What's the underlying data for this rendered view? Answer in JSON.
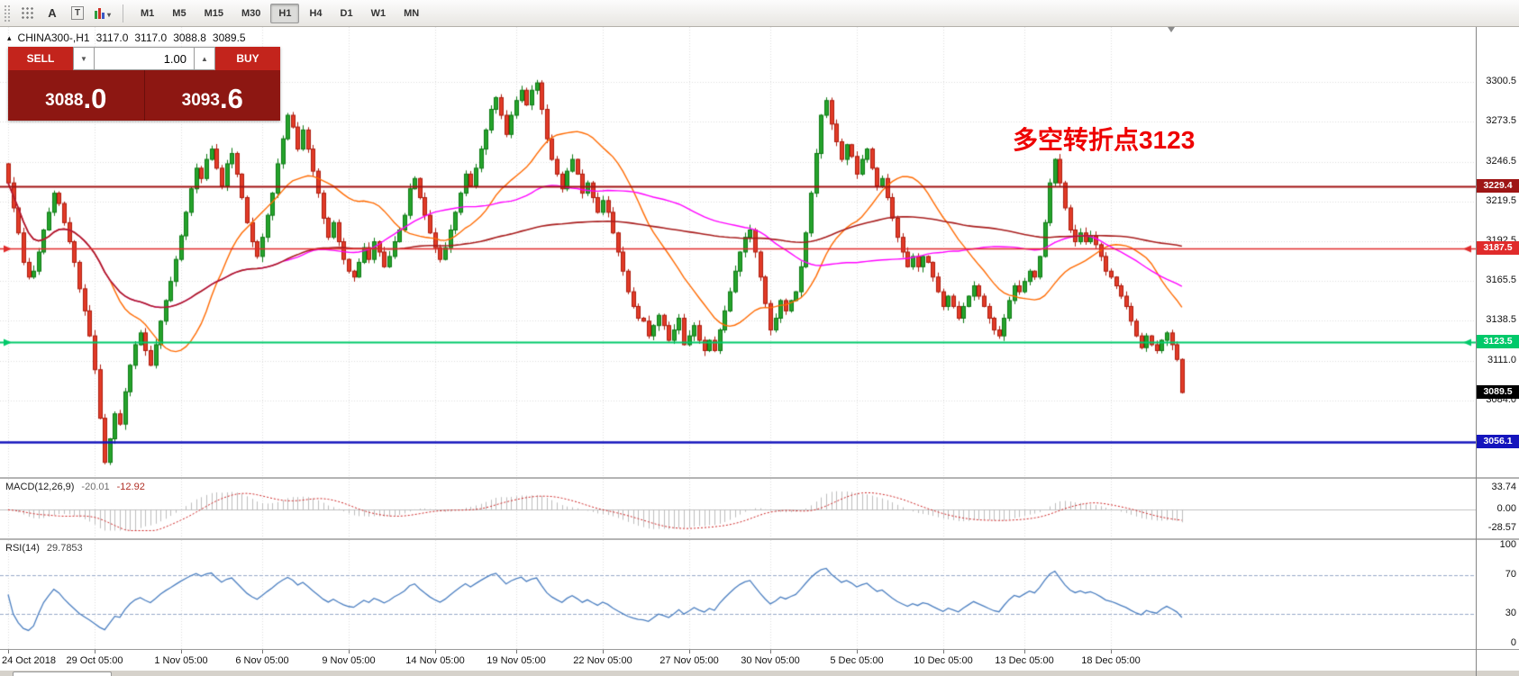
{
  "toolbar": {
    "tool_a": "A",
    "tool_t": "T",
    "timeframes": [
      "M1",
      "M5",
      "M15",
      "M30",
      "H1",
      "H4",
      "D1",
      "W1",
      "MN"
    ],
    "active_timeframe": "H1"
  },
  "icons": {
    "symbol_marker": "▴",
    "volume_down": "▼",
    "volume_up": "▲"
  },
  "header": {
    "symbol_period": "CHINA300-,H1",
    "open": "3117.0",
    "high": "3117.0",
    "low": "3088.8",
    "close": "3089.5"
  },
  "trade_panel": {
    "sell_label": "SELL",
    "buy_label": "BUY",
    "volume": "1.00",
    "sell_price_main": "3088",
    "sell_price_pips": ".0",
    "buy_price_main": "3093",
    "buy_price_pips": ".6"
  },
  "annotation": {
    "text": "多空转折点3123",
    "color": "#ee0000"
  },
  "price_axis": {
    "labels": [
      3300.5,
      3273.5,
      3246.5,
      3219.5,
      3192.5,
      3165.5,
      3138.5,
      3111.0,
      3084.0
    ],
    "tags": [
      {
        "text": "3229.4",
        "price": 3229.4,
        "bg": "#9e1616"
      },
      {
        "text": "3187.5",
        "price": 3187.5,
        "bg": "#e02b2b"
      },
      {
        "text": "3123.5",
        "price": 3123.5,
        "bg": "#00c96a"
      },
      {
        "text": "3089.5",
        "price": 3089.5,
        "bg": "#000000"
      },
      {
        "text": "3056.1",
        "price": 3056.1,
        "bg": "#1414bd"
      }
    ]
  },
  "macd_panel": {
    "label": "MACD(12,26,9)",
    "value_main": "-20.01",
    "value_signal": "-12.92",
    "axis": [
      {
        "text": "33.74",
        "value": 33.74
      },
      {
        "text": "0.00",
        "value": 0
      },
      {
        "text": "-28.57",
        "value": -28.57
      }
    ]
  },
  "rsi_panel": {
    "label": "RSI(14)",
    "value": "29.7853",
    "axis": [
      {
        "text": "100",
        "value": 100
      },
      {
        "text": "70",
        "value": 70
      },
      {
        "text": "30",
        "value": 30
      },
      {
        "text": "0",
        "value": 0
      }
    ],
    "levels": [
      70,
      30
    ]
  },
  "time_axis": [
    {
      "text": "24 Oct 2018",
      "index": 0
    },
    {
      "text": "29 Oct 05:00",
      "index": 17
    },
    {
      "text": "1 Nov 05:00",
      "index": 34
    },
    {
      "text": "6 Nov 05:00",
      "index": 50
    },
    {
      "text": "9 Nov 05:00",
      "index": 67
    },
    {
      "text": "14 Nov 05:00",
      "index": 84
    },
    {
      "text": "19 Nov 05:00",
      "index": 100
    },
    {
      "text": "22 Nov 05:00",
      "index": 117
    },
    {
      "text": "27 Nov 05:00",
      "index": 134
    },
    {
      "text": "30 Nov 05:00",
      "index": 150
    },
    {
      "text": "5 Dec 05:00",
      "index": 167
    },
    {
      "text": "10 Dec 05:00",
      "index": 184
    },
    {
      "text": "13 Dec 05:00",
      "index": 200
    },
    {
      "text": "18 Dec 05:00",
      "index": 217
    }
  ],
  "chart_data": {
    "type": "candlestick",
    "symbol": "CHINA300-",
    "timeframe": "H1",
    "ylim": [
      3032,
      3338
    ],
    "first_open": 3245,
    "closes": [
      3232,
      3215,
      3198,
      3178,
      3168,
      3172,
      3185,
      3200,
      3212,
      3225,
      3218,
      3205,
      3192,
      3178,
      3160,
      3145,
      3128,
      3105,
      3072,
      3042,
      3058,
      3075,
      3068,
      3090,
      3108,
      3122,
      3130,
      3118,
      3108,
      3122,
      3138,
      3152,
      3165,
      3180,
      3196,
      3212,
      3228,
      3242,
      3235,
      3248,
      3255,
      3242,
      3230,
      3245,
      3252,
      3238,
      3222,
      3205,
      3192,
      3182,
      3195,
      3210,
      3225,
      3245,
      3262,
      3278,
      3270,
      3255,
      3268,
      3255,
      3240,
      3225,
      3208,
      3195,
      3205,
      3192,
      3180,
      3172,
      3168,
      3178,
      3188,
      3180,
      3192,
      3185,
      3175,
      3182,
      3192,
      3200,
      3210,
      3228,
      3235,
      3222,
      3210,
      3198,
      3188,
      3180,
      3188,
      3200,
      3212,
      3225,
      3238,
      3230,
      3242,
      3255,
      3268,
      3282,
      3290,
      3278,
      3265,
      3278,
      3288,
      3295,
      3285,
      3295,
      3300,
      3282,
      3262,
      3248,
      3238,
      3228,
      3240,
      3248,
      3238,
      3225,
      3232,
      3222,
      3212,
      3220,
      3212,
      3198,
      3185,
      3172,
      3158,
      3148,
      3140,
      3138,
      3128,
      3135,
      3142,
      3135,
      3125,
      3132,
      3140,
      3122,
      3128,
      3135,
      3125,
      3118,
      3125,
      3118,
      3132,
      3145,
      3158,
      3172,
      3185,
      3195,
      3200,
      3185,
      3168,
      3150,
      3132,
      3140,
      3152,
      3145,
      3152,
      3158,
      3175,
      3198,
      3225,
      3252,
      3278,
      3288,
      3272,
      3260,
      3248,
      3258,
      3250,
      3238,
      3248,
      3255,
      3242,
      3230,
      3235,
      3222,
      3208,
      3195,
      3185,
      3175,
      3182,
      3175,
      3182,
      3178,
      3168,
      3158,
      3148,
      3155,
      3148,
      3140,
      3148,
      3155,
      3162,
      3155,
      3148,
      3140,
      3132,
      3128,
      3140,
      3152,
      3162,
      3158,
      3165,
      3172,
      3168,
      3182,
      3205,
      3232,
      3248,
      3232,
      3215,
      3200,
      3192,
      3198,
      3192,
      3196,
      3190,
      3182,
      3172,
      3168,
      3162,
      3155,
      3148,
      3138,
      3128,
      3120,
      3128,
      3122,
      3118,
      3125,
      3130,
      3122,
      3112,
      3089.5
    ],
    "up_color": "#26a32c",
    "up_border": "#0d7a14",
    "down_color": "#e23b28",
    "down_border": "#ad1b0d",
    "ma": [
      {
        "period": 21,
        "color": "#ff6a00",
        "width": 1.4
      },
      {
        "period": 55,
        "color": "#ff00ff",
        "width": 1.4
      },
      {
        "period": 144,
        "color": "#a81d1d",
        "width": 1.6
      }
    ],
    "hlines": [
      {
        "price": 3229.4,
        "color": "#a01212",
        "width": 2,
        "arrows": false
      },
      {
        "price": 3187.5,
        "color": "#e02b2b",
        "width": 1.5,
        "arrows": true
      },
      {
        "price": 3123.5,
        "color": "#00c96a",
        "width": 2,
        "arrows": true
      },
      {
        "price": 3056.1,
        "color": "#1414bd",
        "width": 2.5,
        "arrows": false
      }
    ],
    "current_price": 3089.5,
    "macd": {
      "fast": 12,
      "slow": 26,
      "signal": 9,
      "histogram_color": "#bcbcbc",
      "signal_color": "#cc2222"
    },
    "rsi": {
      "period": 14,
      "color": "#4a7ec0",
      "level_color": "#96a9c8"
    }
  }
}
